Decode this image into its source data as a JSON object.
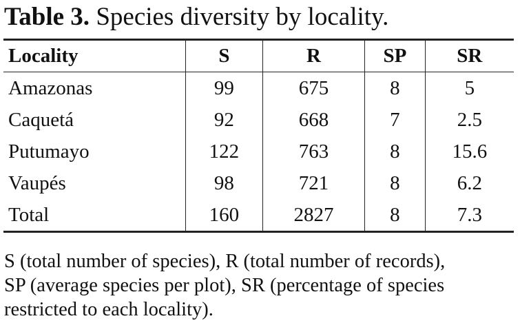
{
  "table": {
    "label": "Table 3.",
    "caption": "Species diversity by locality.",
    "header": [
      "Locality",
      "S",
      "R",
      "SP",
      "SR"
    ],
    "rows": [
      [
        "Amazonas",
        99,
        675,
        8,
        5
      ],
      [
        "Caquetá",
        92,
        668,
        7,
        2.5
      ],
      [
        "Putumayo",
        122,
        763,
        8,
        15.6
      ],
      [
        "Vaupés",
        98,
        721,
        8,
        6.2
      ],
      [
        "Total",
        160,
        2827,
        8,
        7.3
      ]
    ],
    "footnote": [
      "S (total number of species), R (total number of records),",
      "SP (average species per plot), SR (percentage of species",
      "restricted to each locality)."
    ]
  }
}
